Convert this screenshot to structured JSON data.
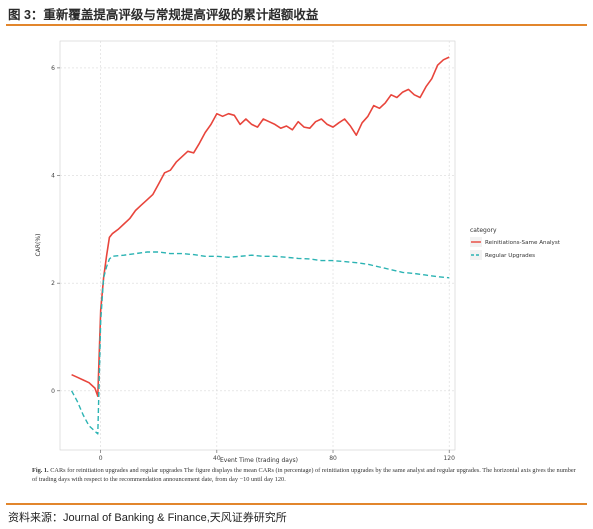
{
  "header": {
    "title": "图 3：重新覆盖提高评级与常规提高评级的累计超额收益"
  },
  "footer": {
    "source": "资料来源：Journal of Banking & Finance,天风证券研究所"
  },
  "caption": {
    "fig": "Fig. 1.",
    "text": "CARs for reinitiation upgrades and regular upgrades The figure displays the mean CARs (in percentage) of reinitiation upgrades by the same analyst and regular upgrades. The horizontal axis gives the number of trading days with respect to the recommendation announcement date, from day −10 until day 120."
  },
  "colors": {
    "series1": "#e8453c",
    "series2": "#2bb3b3",
    "accent": "#e2862c"
  },
  "chart_data": {
    "type": "line",
    "xlabel": "Event Time (trading days)",
    "ylabel": "CAR(%)",
    "xlim": [
      -14,
      122
    ],
    "ylim": [
      -1.1,
      6.5
    ],
    "xticks": [
      0,
      40,
      80,
      120
    ],
    "yticks": [
      0,
      2,
      4,
      6
    ],
    "grid": true,
    "legend_position": "right",
    "legend_title": "category",
    "series": [
      {
        "name": "Reinitiations-Same Analyst",
        "style": "solid",
        "x": [
          -10,
          -8,
          -6,
          -4,
          -2,
          -1,
          0,
          1,
          2,
          3,
          4,
          6,
          8,
          10,
          12,
          14,
          16,
          18,
          20,
          22,
          24,
          26,
          28,
          30,
          32,
          34,
          36,
          38,
          40,
          42,
          44,
          46,
          48,
          50,
          52,
          54,
          56,
          58,
          60,
          62,
          64,
          66,
          68,
          70,
          72,
          74,
          76,
          78,
          80,
          82,
          84,
          86,
          88,
          90,
          92,
          94,
          96,
          98,
          100,
          102,
          104,
          106,
          108,
          110,
          112,
          114,
          116,
          118,
          120
        ],
        "values": [
          0.3,
          0.25,
          0.2,
          0.15,
          0.05,
          -0.1,
          1.5,
          2.1,
          2.5,
          2.85,
          2.92,
          3.0,
          3.1,
          3.2,
          3.35,
          3.45,
          3.55,
          3.65,
          3.85,
          4.05,
          4.1,
          4.25,
          4.35,
          4.45,
          4.42,
          4.6,
          4.8,
          4.95,
          5.15,
          5.1,
          5.15,
          5.12,
          4.95,
          5.05,
          4.95,
          4.9,
          5.05,
          5.0,
          4.95,
          4.88,
          4.92,
          4.85,
          5.0,
          4.9,
          4.88,
          5.0,
          5.05,
          4.95,
          4.9,
          4.98,
          5.05,
          4.92,
          4.75,
          4.98,
          5.1,
          5.3,
          5.25,
          5.35,
          5.5,
          5.45,
          5.55,
          5.6,
          5.5,
          5.45,
          5.65,
          5.8,
          6.05,
          6.15,
          6.2
        ]
      },
      {
        "name": "Regular Upgrades",
        "style": "dashed",
        "x": [
          -10,
          -8,
          -6,
          -4,
          -2,
          -1,
          0,
          1,
          2,
          3,
          4,
          8,
          12,
          16,
          20,
          24,
          28,
          32,
          36,
          40,
          44,
          48,
          52,
          56,
          60,
          64,
          68,
          72,
          76,
          80,
          84,
          88,
          92,
          96,
          100,
          104,
          108,
          112,
          116,
          120
        ],
        "values": [
          0.0,
          -0.2,
          -0.45,
          -0.65,
          -0.75,
          -0.8,
          1.3,
          2.1,
          2.3,
          2.45,
          2.5,
          2.52,
          2.55,
          2.58,
          2.58,
          2.55,
          2.55,
          2.53,
          2.5,
          2.5,
          2.48,
          2.5,
          2.52,
          2.5,
          2.5,
          2.48,
          2.46,
          2.45,
          2.42,
          2.42,
          2.4,
          2.38,
          2.35,
          2.3,
          2.25,
          2.2,
          2.18,
          2.15,
          2.12,
          2.1
        ]
      }
    ]
  }
}
